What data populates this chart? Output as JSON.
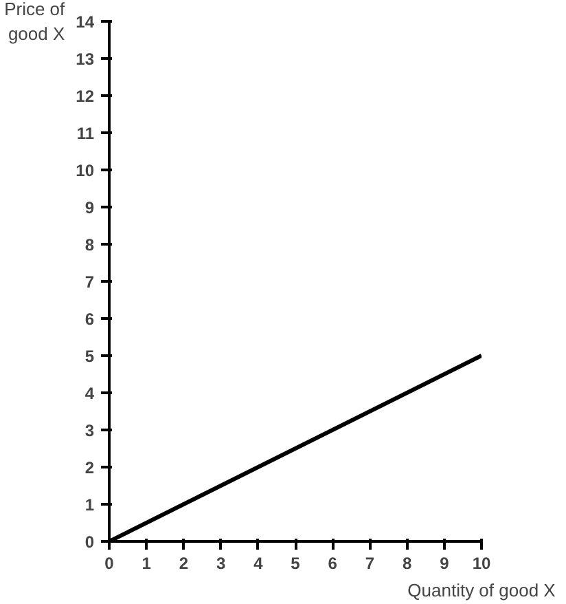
{
  "chart_data": {
    "type": "line",
    "xlabel": "Quantity of good X",
    "ylabel": "Price of\ngood X",
    "x": [
      0,
      10
    ],
    "series": [
      {
        "color": "#000000",
        "values": [
          0,
          5
        ]
      }
    ],
    "xlim": [
      0,
      10
    ],
    "ylim": [
      0,
      14
    ],
    "xticks": [
      0,
      1,
      2,
      3,
      4,
      5,
      6,
      7,
      8,
      9,
      10
    ],
    "yticks": [
      0,
      1,
      2,
      3,
      4,
      5,
      6,
      7,
      8,
      9,
      10,
      11,
      12,
      13,
      14
    ],
    "grid": false,
    "marker": "none",
    "line_style": "solid"
  }
}
